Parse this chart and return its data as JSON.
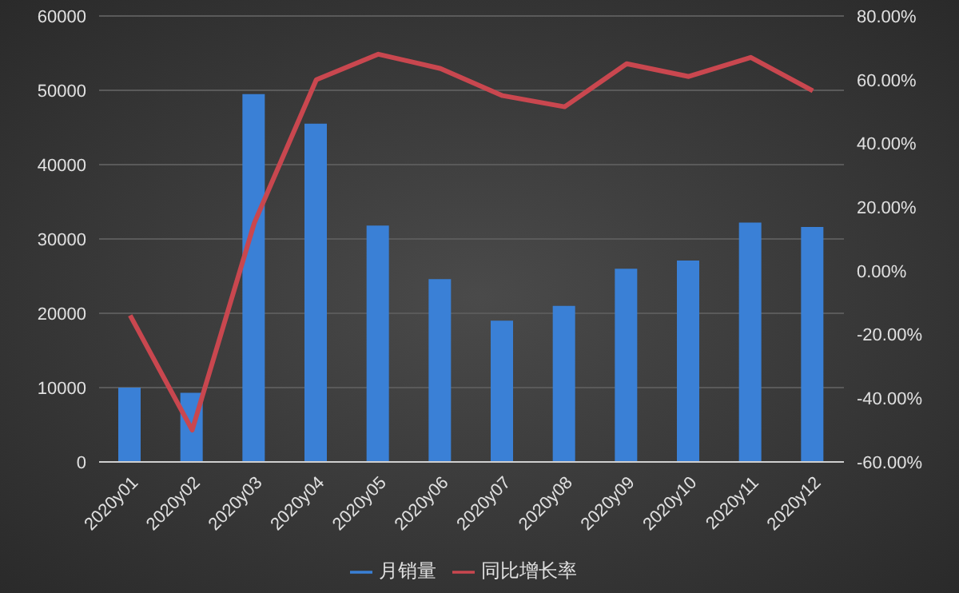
{
  "chart_data": {
    "type": "bar",
    "categories": [
      "2020y01",
      "2020y02",
      "2020y03",
      "2020y04",
      "2020y05",
      "2020y06",
      "2020y07",
      "2020y08",
      "2020y09",
      "2020y10",
      "2020y11",
      "2020y12"
    ],
    "series": [
      {
        "name": "月销量",
        "color": "#3a80d6",
        "values": [
          10000,
          9300,
          49500,
          45500,
          31800,
          24600,
          19000,
          21000,
          26000,
          27100,
          32200,
          31600
        ]
      },
      {
        "name": "同比增长率",
        "type": "line",
        "axis": "y2",
        "color": "#c9474f",
        "values": [
          -14,
          -50,
          15,
          60,
          68,
          63.5,
          55,
          51.5,
          65,
          61,
          67,
          56.5
        ]
      }
    ],
    "ylim": [
      0,
      60000
    ],
    "yticks": [
      0,
      10000,
      20000,
      30000,
      40000,
      50000,
      60000
    ],
    "y2lim": [
      -60,
      80
    ],
    "y2ticks": [
      {
        "value": -60,
        "label": "-60.00%"
      },
      {
        "value": -40,
        "label": "-40.00%"
      },
      {
        "value": -20,
        "label": "-20.00%"
      },
      {
        "value": 0,
        "label": "0.00%"
      },
      {
        "value": 20,
        "label": "20.00%"
      },
      {
        "value": 40,
        "label": "40.00%"
      },
      {
        "value": 60,
        "label": "60.00%"
      },
      {
        "value": 80,
        "label": "80.00%"
      }
    ],
    "grid": "y",
    "legend": "bottom",
    "marker": "none"
  }
}
